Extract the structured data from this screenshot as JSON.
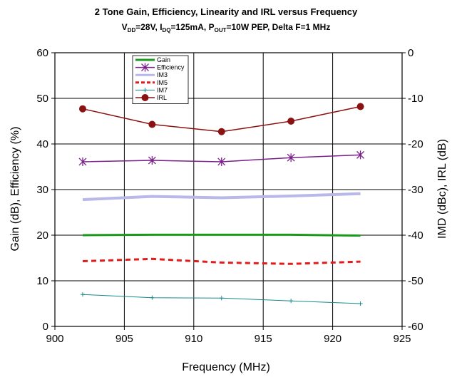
{
  "chart_data": {
    "type": "line",
    "title": "2 Tone Gain, Efficiency, Linearity and IRL versus Frequency",
    "subtitle": {
      "vdd_main": "V",
      "vdd_sub": "DD",
      "vdd_rest": "=28V, ",
      "idq_main": "I",
      "idq_sub": "DQ",
      "idq_rest": "=125mA, ",
      "pout_main": "P",
      "pout_sub": "OUT",
      "pout_rest": "=10W PEP, Delta F=1 MHz"
    },
    "xlabel": "Frequency (MHz)",
    "ylabel_left": "Gain (dB), Efficiency (%)",
    "ylabel_right": "IMD (dBc), IRL (dB)",
    "xlim": [
      900,
      925
    ],
    "ylim_left": [
      0,
      60
    ],
    "ylim_right": [
      -60,
      0
    ],
    "xticks": [
      "900",
      "905",
      "910",
      "915",
      "920",
      "925"
    ],
    "yticks_left": [
      "0",
      "10",
      "20",
      "30",
      "40",
      "50",
      "60"
    ],
    "yticks_right": [
      "-60",
      "-50",
      "-40",
      "-30",
      "-20",
      "-10",
      "0"
    ],
    "grid": true,
    "legend_position": "top-left",
    "x": [
      902,
      907,
      912,
      917,
      922
    ],
    "series": [
      {
        "name": "Gain",
        "axis": "left",
        "values": [
          20.0,
          20.1,
          20.1,
          20.1,
          19.9
        ],
        "color": "#1a9a1a",
        "style": "solid",
        "width": 3,
        "marker": "none"
      },
      {
        "name": "Efficiency",
        "axis": "left",
        "values": [
          36.1,
          36.4,
          36.1,
          37.0,
          37.6
        ],
        "color": "#7a1f8a",
        "style": "solid",
        "width": 1.5,
        "marker": "asterisk"
      },
      {
        "name": "IM3",
        "axis": "right",
        "values": [
          -32.2,
          -31.5,
          -31.8,
          -31.4,
          -30.9
        ],
        "color": "#b8b8ea",
        "style": "solid",
        "width": 4,
        "marker": "none"
      },
      {
        "name": "IM5",
        "axis": "right",
        "values": [
          -45.7,
          -45.2,
          -46.0,
          -46.3,
          -45.8
        ],
        "color": "#e21b1b",
        "style": "dashed",
        "width": 3,
        "marker": "none"
      },
      {
        "name": "IM7",
        "axis": "right",
        "values": [
          -53.0,
          -53.7,
          -53.8,
          -54.4,
          -55.0
        ],
        "color": "#178a8a",
        "style": "solid",
        "width": 1,
        "marker": "plus"
      },
      {
        "name": "IRL",
        "axis": "right",
        "values": [
          -12.3,
          -15.7,
          -17.3,
          -15.0,
          -11.8
        ],
        "color": "#8b1212",
        "style": "solid",
        "width": 1.5,
        "marker": "circle"
      }
    ]
  }
}
